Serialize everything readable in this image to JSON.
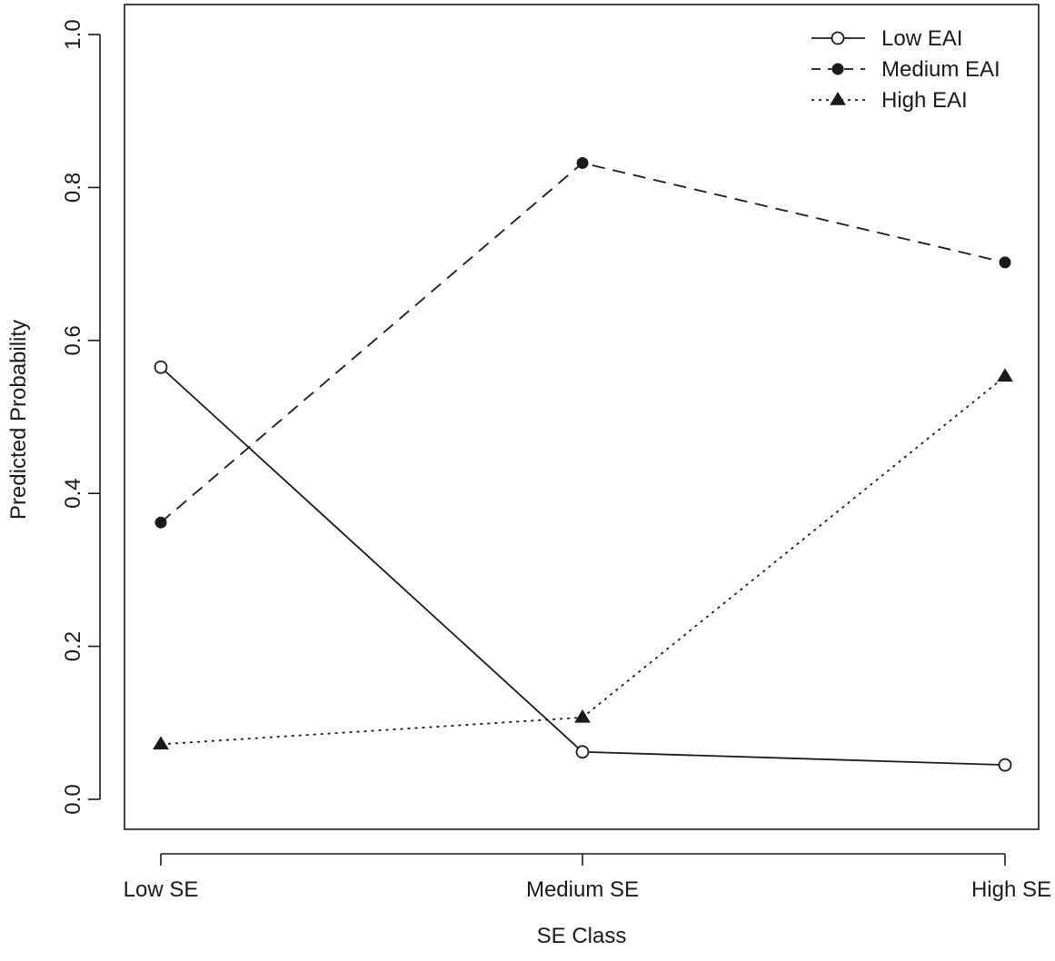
{
  "chart_data": {
    "type": "line",
    "xlabel": "SE Class",
    "ylabel": "Predicted Probability",
    "categories": [
      "Low SE",
      "Medium SE",
      "High SE"
    ],
    "ylim": [
      0,
      1
    ],
    "yticks": [
      "0.0",
      "0.2",
      "0.4",
      "0.6",
      "0.8",
      "1.0"
    ],
    "grid": false,
    "legend_position": "top-right",
    "series": [
      {
        "name": "Low EAI",
        "values": [
          0.565,
          0.062,
          0.045
        ],
        "marker": "open-circle",
        "linestyle": "solid",
        "color": "#1a1a1a"
      },
      {
        "name": "Medium EAI",
        "values": [
          0.362,
          0.832,
          0.702
        ],
        "marker": "filled-circle",
        "linestyle": "dashed",
        "color": "#1a1a1a"
      },
      {
        "name": "High EAI",
        "values": [
          0.072,
          0.107,
          0.553
        ],
        "marker": "filled-triangle",
        "linestyle": "dotted",
        "color": "#1a1a1a"
      }
    ]
  }
}
